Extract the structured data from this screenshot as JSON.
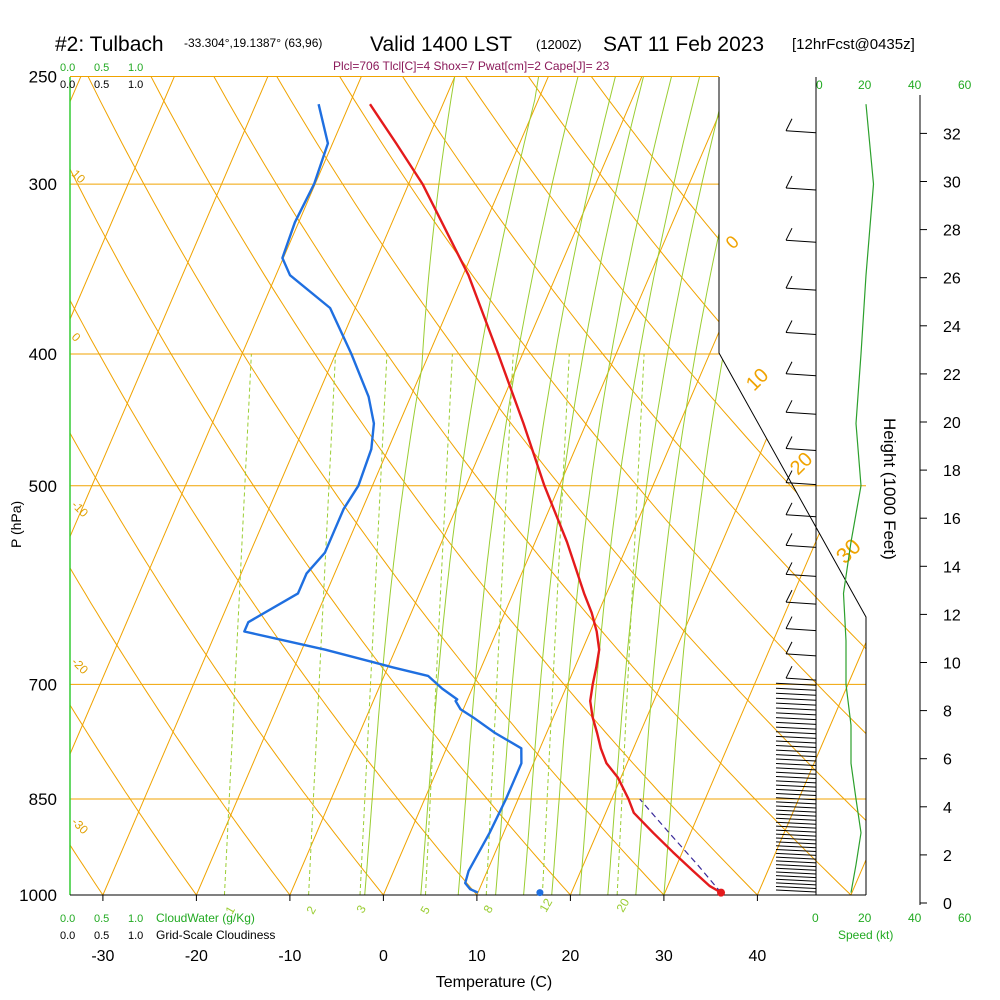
{
  "header": {
    "station": "#2: Tulbach",
    "coords": "-33.304°,19.1387° (63,96)",
    "valid": "Valid 1400 LST",
    "zulu": "(1200Z)",
    "date": "SAT 11 Feb 2023",
    "fcst": "[12hrFcst@0435z]",
    "params": "Plcl=706 Tlcl[C]=4 Shox=7 Pwat[cm]=2 Cape[J]= 23"
  },
  "left_axis": {
    "title": "P (hPa)",
    "cloud_scale_top": [
      "0.0",
      "0.5",
      "1.0"
    ],
    "cloud_scale_black": [
      "0.0",
      "0.5",
      "1.0"
    ],
    "cloudwater_label": "CloudWater (g/Kg)",
    "cloudiness_label": "Grid-Scale Cloudiness"
  },
  "bottom_axis": {
    "title": "Temperature (C)"
  },
  "right_axis": {
    "title": "Height (1000 Feet)"
  },
  "wind_axis": {
    "top_ticks": [
      "0",
      "20",
      "40",
      "60"
    ],
    "bottom_ticks": [
      "0",
      "20",
      "40",
      "60"
    ],
    "label": "Speed (kt)"
  },
  "chart_data": {
    "type": "line",
    "skew_t": true,
    "pressure_levels": [
      250,
      300,
      400,
      500,
      700,
      850,
      1000
    ],
    "pressure_labels": [
      "250",
      "300",
      "400",
      "500",
      "700",
      "850",
      "1000"
    ],
    "temp_ticks": [
      -30,
      -20,
      -10,
      0,
      10,
      20,
      30,
      40
    ],
    "temp_labels": [
      "-30",
      "-20",
      "-10",
      "0",
      "10",
      "20",
      "30",
      "40"
    ],
    "height_ticks_kft": [
      0,
      2,
      4,
      6,
      8,
      10,
      12,
      14,
      16,
      18,
      20,
      22,
      24,
      26,
      28,
      30,
      32
    ],
    "height_labels": [
      "0",
      "2",
      "4",
      "6",
      "8",
      "10",
      "12",
      "14",
      "16",
      "18",
      "20",
      "22",
      "24",
      "26",
      "28",
      "30",
      "32"
    ],
    "dry_adiabat_labels": [
      "10",
      "0",
      "-10",
      "-20",
      "-30"
    ],
    "right_isotherm_labels": [
      "0",
      "10",
      "20",
      "30"
    ],
    "mixing_ratio_labels": [
      "1",
      "2",
      "3",
      "5",
      "8",
      "12",
      "20"
    ],
    "series": [
      {
        "color": "#e41a1c",
        "points": [
          [
            996,
            36
          ],
          [
            985,
            34.5
          ],
          [
            960,
            32
          ],
          [
            930,
            29
          ],
          [
            900,
            26
          ],
          [
            870,
            23
          ],
          [
            850,
            21.8
          ],
          [
            820,
            19.7
          ],
          [
            800,
            17.8
          ],
          [
            780,
            16.5
          ],
          [
            760,
            15.4
          ],
          [
            740,
            14.2
          ],
          [
            720,
            13.2
          ],
          [
            700,
            12.7
          ],
          [
            680,
            12.3
          ],
          [
            660,
            11.8
          ],
          [
            640,
            10.7
          ],
          [
            620,
            9.3
          ],
          [
            600,
            7.6
          ],
          [
            550,
            3.4
          ],
          [
            500,
            -1.6
          ],
          [
            450,
            -6.7
          ],
          [
            400,
            -12.6
          ],
          [
            350,
            -19.4
          ],
          [
            300,
            -28.5
          ],
          [
            280,
            -33.2
          ],
          [
            262,
            -37.8
          ]
        ]
      },
      {
        "color": "#1f6fe0",
        "points": [
          [
            996,
            10
          ],
          [
            990,
            9
          ],
          [
            980,
            8.2
          ],
          [
            960,
            8
          ],
          [
            900,
            8.5
          ],
          [
            850,
            8.7
          ],
          [
            800,
            8.7
          ],
          [
            780,
            8
          ],
          [
            760,
            4.5
          ],
          [
            740,
            1.4
          ],
          [
            730,
            -0.3
          ],
          [
            720,
            -1.2
          ],
          [
            718,
            -1.1
          ],
          [
            705,
            -3.2
          ],
          [
            690,
            -5.3
          ],
          [
            680,
            -9.5
          ],
          [
            660,
            -17.5
          ],
          [
            640,
            -27
          ],
          [
            630,
            -27
          ],
          [
            600,
            -23
          ],
          [
            580,
            -23
          ],
          [
            560,
            -22
          ],
          [
            540,
            -22
          ],
          [
            520,
            -22
          ],
          [
            500,
            -21.5
          ],
          [
            470,
            -21.8
          ],
          [
            450,
            -22.7
          ],
          [
            430,
            -24.5
          ],
          [
            400,
            -28.3
          ],
          [
            370,
            -32.7
          ],
          [
            350,
            -38.5
          ],
          [
            340,
            -40.1
          ],
          [
            320,
            -40.4
          ],
          [
            300,
            -40.1
          ],
          [
            280,
            -40.5
          ],
          [
            262,
            -43.3
          ]
        ]
      }
    ],
    "surface_temp_c": 36,
    "surface_dewpoint_c": 10,
    "cloudwater_profile": [
      0,
      0,
      0,
      0,
      0,
      0,
      0
    ],
    "wind_speed_kt": [
      [
        996,
        8
      ],
      [
        950,
        10
      ],
      [
        900,
        12
      ],
      [
        850,
        10
      ],
      [
        800,
        8
      ],
      [
        750,
        8
      ],
      [
        700,
        6
      ],
      [
        650,
        6
      ],
      [
        600,
        5
      ],
      [
        550,
        8
      ],
      [
        500,
        12
      ],
      [
        450,
        10
      ],
      [
        400,
        12
      ],
      [
        350,
        14
      ],
      [
        300,
        17
      ],
      [
        262,
        14
      ]
    ]
  }
}
